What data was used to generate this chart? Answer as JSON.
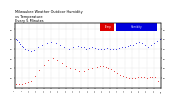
{
  "title_line1": "Milwaukee Weather Outdoor Humidity",
  "title_line2": "vs Temperature",
  "title_line3": "Every 5 Minutes",
  "title_fontsize": 2.5,
  "background_color": "#ffffff",
  "plot_bg_color": "#ffffff",
  "grid_color": "#bbbbbb",
  "blue_color": "#0000dd",
  "red_color": "#dd0000",
  "legend_red_label": "Temp",
  "legend_blue_label": "Humidity",
  "ylim": [
    0,
    100
  ],
  "blue_x": [
    1,
    2,
    3,
    4,
    5,
    6,
    7,
    9,
    11,
    13,
    16,
    19,
    22,
    25,
    28,
    31,
    34,
    37,
    40,
    43,
    45,
    47,
    49,
    51,
    53,
    55,
    57,
    59,
    61,
    63,
    65,
    67,
    69,
    71,
    73,
    75,
    77,
    79,
    81,
    83,
    85,
    87,
    89,
    91,
    93,
    95,
    97,
    99
  ],
  "blue_y": [
    75,
    73,
    70,
    67,
    64,
    62,
    60,
    58,
    56,
    58,
    62,
    65,
    68,
    70,
    68,
    65,
    62,
    60,
    62,
    64,
    63,
    62,
    60,
    61,
    62,
    61,
    60,
    59,
    60,
    61,
    60,
    59,
    60,
    61,
    62,
    63,
    64,
    65,
    66,
    68,
    70,
    68,
    65,
    63,
    65,
    68,
    72,
    75
  ],
  "red_x": [
    1,
    3,
    5,
    7,
    9,
    11,
    14,
    17,
    20,
    23,
    26,
    29,
    32,
    35,
    38,
    41,
    44,
    47,
    50,
    53,
    56,
    58,
    60,
    62,
    64,
    66,
    68,
    70,
    72,
    74,
    76,
    78,
    80,
    82,
    84,
    86,
    88,
    90,
    92,
    94,
    96,
    98
  ],
  "red_y": [
    5,
    5,
    6,
    7,
    8,
    10,
    18,
    27,
    35,
    42,
    45,
    42,
    38,
    34,
    30,
    28,
    26,
    25,
    28,
    30,
    32,
    33,
    34,
    32,
    30,
    28,
    25,
    22,
    20,
    18,
    16,
    15,
    14,
    15,
    16,
    17,
    16,
    15,
    16,
    17,
    16,
    10
  ],
  "marker_size": 1.2,
  "tick_fontsize": 1.5,
  "yticks": [
    15,
    30,
    45,
    60,
    75,
    90
  ],
  "xtick_count": 20
}
